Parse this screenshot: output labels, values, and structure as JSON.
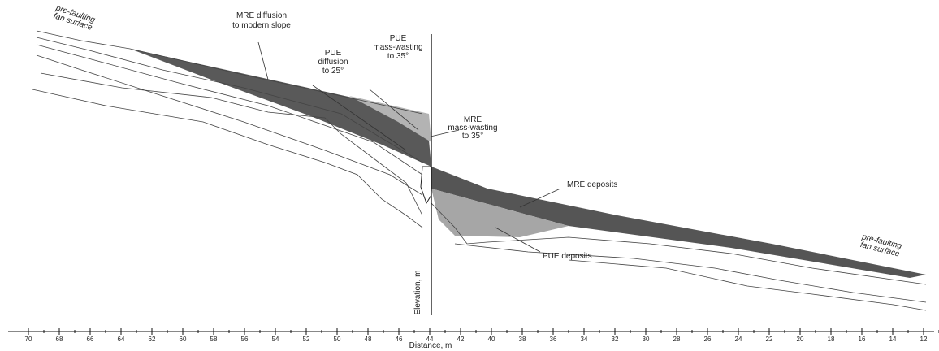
{
  "annotations": [
    {
      "lines": [
        "pre-faulting",
        "fan surface"
      ]
    },
    {
      "lines": [
        "MRE diffusion",
        "to modern slope"
      ]
    },
    {
      "lines": [
        "PUE",
        "diffusion",
        "to 25°"
      ]
    },
    {
      "lines": [
        "PUE",
        "mass-wasting",
        "to 35°"
      ]
    },
    {
      "lines": [
        "MRE",
        "mass-wasting",
        "to 35°"
      ]
    },
    {
      "lines": [
        "MRE deposits"
      ]
    },
    {
      "lines": [
        "PUE deposits"
      ]
    },
    {
      "lines": [
        "pre-faulting",
        "fan surface"
      ]
    }
  ],
  "x_axis": {
    "label": "Distance, m",
    "ticks": [
      70,
      68,
      66,
      64,
      62,
      60,
      58,
      56,
      54,
      52,
      50,
      48,
      46,
      44,
      42,
      40,
      38,
      36,
      34,
      32,
      30,
      28,
      26,
      24,
      22,
      20,
      18,
      16,
      14,
      12
    ]
  },
  "y_axis": {
    "label": "Elevation, m"
  }
}
